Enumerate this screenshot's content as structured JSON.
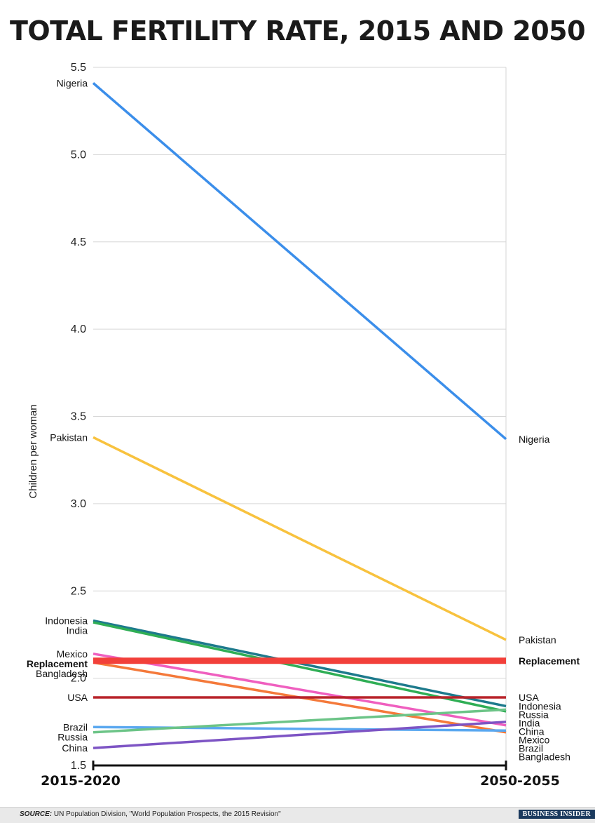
{
  "chart_data": {
    "type": "line",
    "title": "TOTAL FERTILITY RATE, 2015 AND 2050",
    "ylabel": "Children per woman",
    "xlabel": "",
    "categories": [
      "2015-2020",
      "2050-2055"
    ],
    "ylim": [
      1.5,
      5.5
    ],
    "yticks": [
      "1.5",
      "2.0",
      "2.5",
      "3.0",
      "3.5",
      "4.0",
      "4.5",
      "5.0",
      "5.5"
    ],
    "grid": true,
    "series": [
      {
        "name": "Nigeria",
        "values": [
          5.41,
          3.37
        ],
        "color": "#3b8eea"
      },
      {
        "name": "Pakistan",
        "values": [
          3.38,
          2.22
        ],
        "color": "#f8c23e"
      },
      {
        "name": "Indonesia",
        "values": [
          2.33,
          1.84
        ],
        "color": "#1d7a8c"
      },
      {
        "name": "India",
        "values": [
          2.32,
          1.81
        ],
        "color": "#2fae55"
      },
      {
        "name": "Mexico",
        "values": [
          2.14,
          1.73
        ],
        "color": "#ef5fbf"
      },
      {
        "name": "Replacement",
        "values": [
          2.1,
          2.1
        ],
        "color": "#f2403a",
        "bold": true
      },
      {
        "name": "Bangladesh",
        "values": [
          2.09,
          1.69
        ],
        "color": "#f4793a"
      },
      {
        "name": "USA",
        "values": [
          1.89,
          1.89
        ],
        "color": "#b8232a"
      },
      {
        "name": "Brazil",
        "values": [
          1.72,
          1.7
        ],
        "color": "#5aa8f0"
      },
      {
        "name": "Russia",
        "values": [
          1.69,
          1.82
        ],
        "color": "#6cc487"
      },
      {
        "name": "China",
        "values": [
          1.6,
          1.75
        ],
        "color": "#7d54c4"
      }
    ],
    "left_labels": [
      {
        "text": "Nigeria",
        "series": "Nigeria"
      },
      {
        "text": "Pakistan",
        "series": "Pakistan"
      },
      {
        "text": "Indonesia",
        "series": "Indonesia"
      },
      {
        "text": "India",
        "series": "India"
      },
      {
        "text": "Mexico",
        "series": "Mexico"
      },
      {
        "text": "Replacement",
        "series": "Replacement"
      },
      {
        "text": "Bangladesh",
        "series": "Bangladesh"
      },
      {
        "text": "USA",
        "series": "USA"
      },
      {
        "text": "Brazil",
        "series": "Brazil"
      },
      {
        "text": "Russia",
        "series": "Russia"
      },
      {
        "text": "China",
        "series": "China"
      }
    ],
    "right_labels": [
      {
        "text": "Nigeria",
        "series": "Nigeria"
      },
      {
        "text": "Pakistan",
        "series": "Pakistan"
      },
      {
        "text": "Replacement",
        "series": "Replacement"
      },
      {
        "text": "USA",
        "series": "USA"
      },
      {
        "text": "Indonesia",
        "series": "Indonesia"
      },
      {
        "text": "Russia",
        "series": "Russia"
      },
      {
        "text": "India",
        "series": "India"
      },
      {
        "text": "China",
        "series": "China"
      },
      {
        "text": "Mexico",
        "series": "Mexico"
      },
      {
        "text": "Brazil",
        "series": "Brazil"
      },
      {
        "text": "Bangladesh",
        "series": "Bangladesh"
      }
    ]
  },
  "footer": {
    "source_label": "SOURCE:",
    "source_text": " UN Population Division, \"World Population Prospects, the 2015 Revision\"",
    "brand": "BUSINESS INSIDER"
  }
}
